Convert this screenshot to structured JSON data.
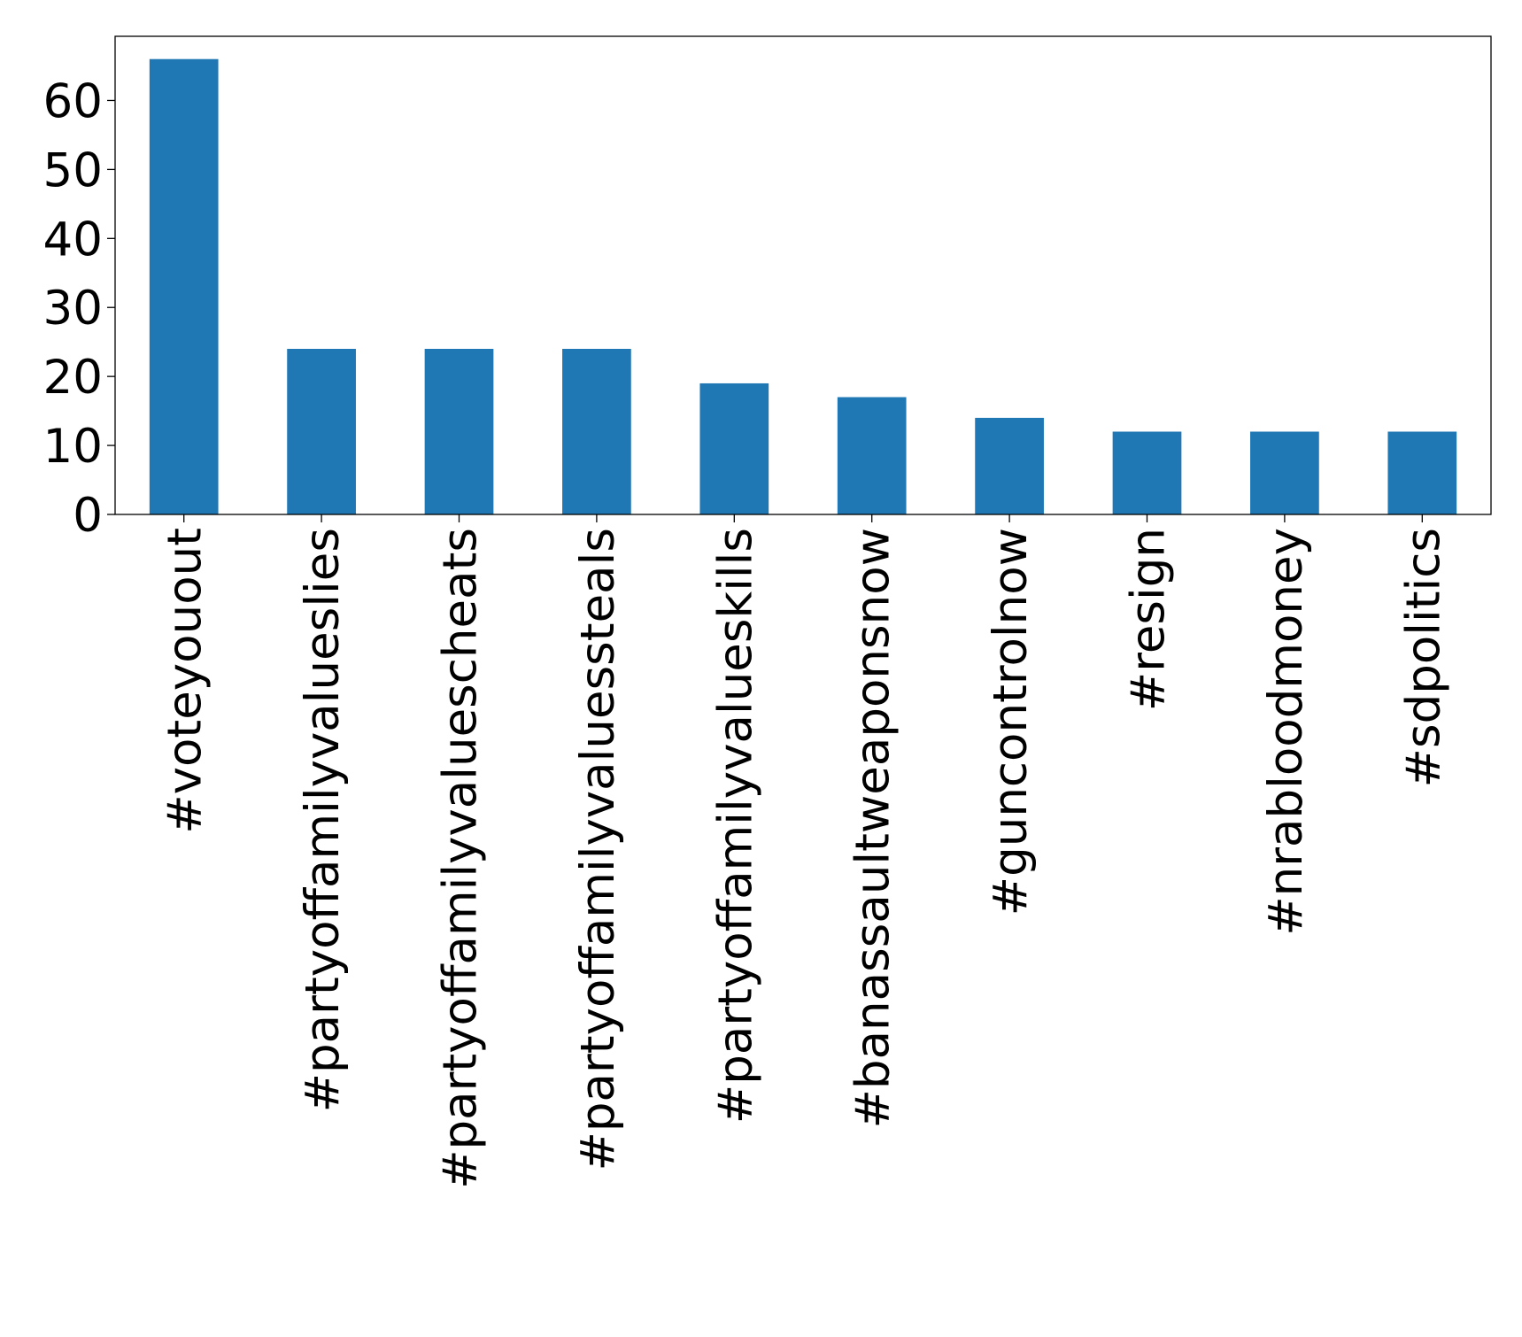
{
  "chart_data": {
    "type": "bar",
    "categories": [
      "#voteyouout",
      "#partyoffamilyvalueslies",
      "#partyoffamilyvaluescheats",
      "#partyoffamilyvaluessteals",
      "#partyoffamilyvalueskills",
      "#banassaultweaponsnow",
      "#guncontrolnow",
      "#resign",
      "#nrabloodmoney",
      "#sdpolitics"
    ],
    "values": [
      66,
      24,
      24,
      24,
      19,
      17,
      14,
      12,
      12,
      12
    ],
    "color": "#1f77b4",
    "ylim": [
      0,
      69.3
    ],
    "yticks": [
      0,
      10,
      20,
      30,
      40,
      50,
      60
    ],
    "grid": false
  }
}
